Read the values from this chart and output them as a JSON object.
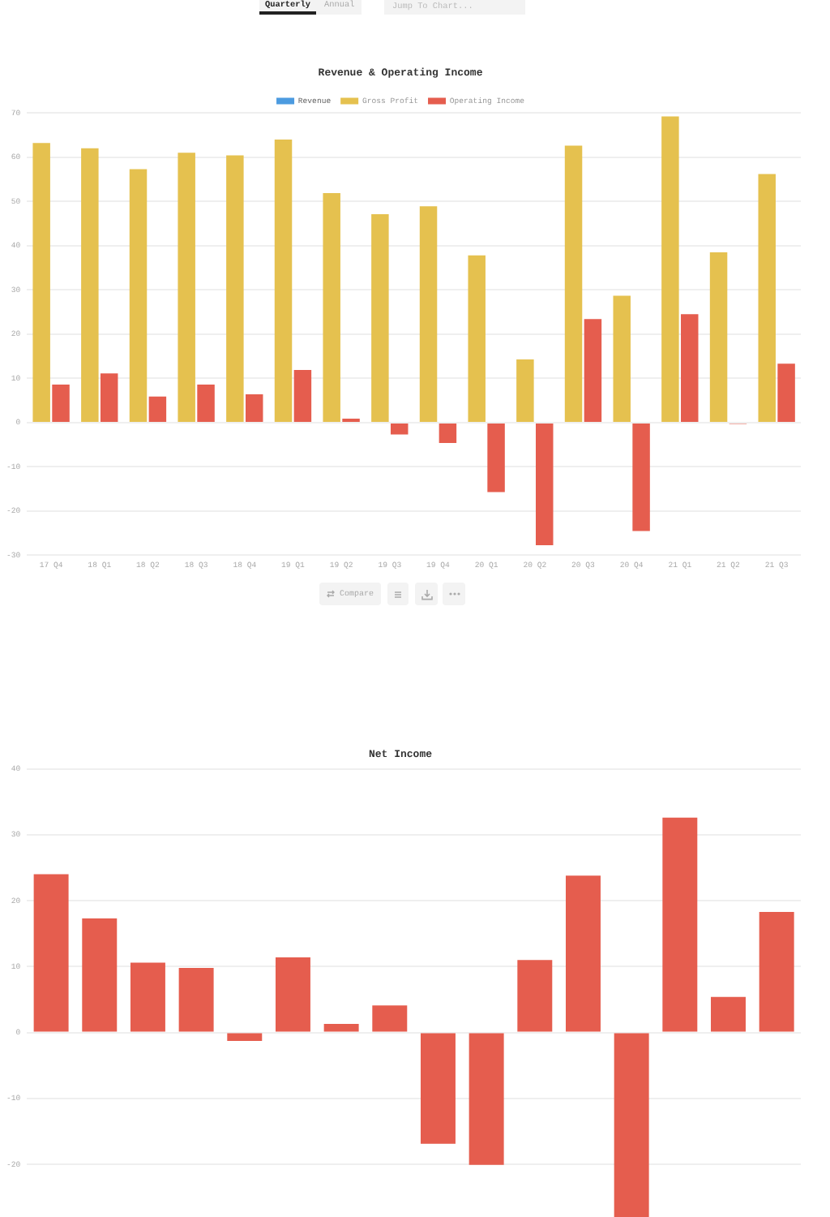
{
  "chart_data": [
    {
      "type": "bar",
      "title": "Revenue & Operating Income",
      "categories": [
        "17 Q4",
        "18 Q1",
        "18 Q2",
        "18 Q3",
        "18 Q4",
        "19 Q1",
        "19 Q2",
        "19 Q3",
        "19 Q4",
        "20 Q1",
        "20 Q2",
        "20 Q3",
        "20 Q4",
        "21 Q1",
        "21 Q2",
        "21 Q3"
      ],
      "series": [
        {
          "name": "Revenue",
          "color": "#4c9be0",
          "values": [
            null,
            null,
            null,
            null,
            null,
            null,
            null,
            null,
            null,
            null,
            null,
            null,
            null,
            null,
            null,
            null
          ]
        },
        {
          "name": "Gross Profit",
          "color": "#e5c14f",
          "values": [
            63.2,
            62.0,
            57.3,
            61.0,
            60.4,
            64.0,
            51.9,
            47.1,
            48.9,
            37.8,
            14.3,
            62.6,
            28.7,
            69.2,
            38.5,
            56.2
          ]
        },
        {
          "name": "Operating Income",
          "color": "#e55d4e",
          "values": [
            8.6,
            11.1,
            5.9,
            8.6,
            6.4,
            11.9,
            0.9,
            -2.7,
            -4.6,
            -15.7,
            -27.7,
            23.4,
            -24.5,
            24.5,
            -0.3,
            13.3
          ]
        }
      ],
      "ylim": [
        -30,
        70
      ],
      "yticks": [
        -30,
        -20,
        -10,
        0,
        10,
        20,
        30,
        40,
        50,
        60,
        70
      ],
      "grid": "y",
      "legend": "top",
      "annotations": [
        "Quarterly",
        "Annual",
        "Jump To Chart...",
        "Compare"
      ]
    },
    {
      "type": "bar",
      "title": "Net Income",
      "categories": [
        null,
        null,
        null,
        null,
        null,
        null,
        null,
        null,
        null,
        null,
        null,
        null,
        null,
        null,
        null,
        null
      ],
      "values": [
        24.0,
        17.3,
        10.6,
        9.8,
        -1.3,
        11.4,
        1.3,
        4.1,
        -16.9,
        -20.1,
        11.0,
        23.8,
        -28,
        32.6,
        5.4,
        18.3
      ],
      "color": "#e55d4e",
      "ylim": [
        -28,
        40
      ],
      "yticks": [
        -20,
        -10,
        0,
        10,
        20,
        30,
        40
      ],
      "grid": "y",
      "tick_labels": "y"
    }
  ]
}
